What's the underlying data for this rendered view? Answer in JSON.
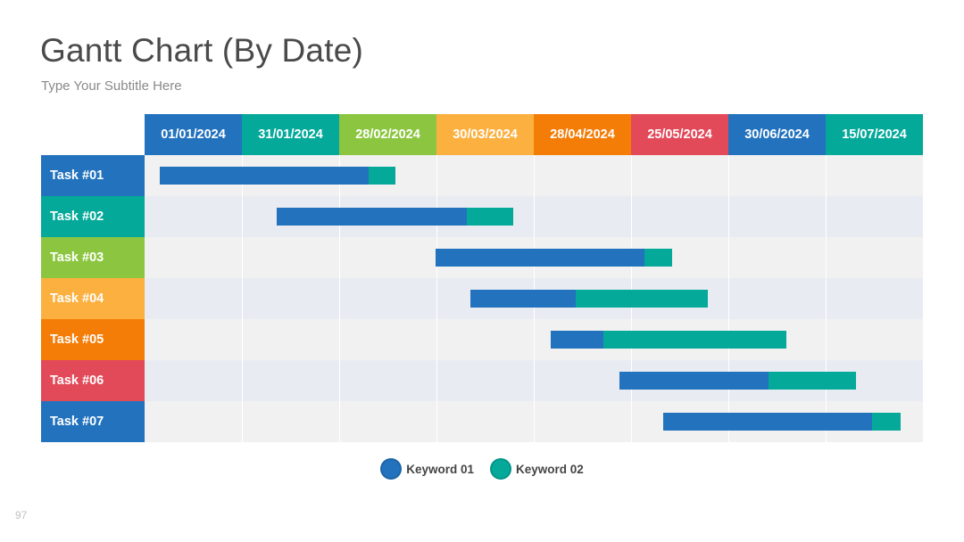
{
  "slide": {
    "title": "Gantt Chart (By Date)",
    "subtitle": "Type Your Subtitle Here",
    "page_number": "97"
  },
  "colors": {
    "blue": "#2272bd",
    "teal": "#05a99a",
    "green": "#8cc640",
    "yellow": "#fbb040",
    "orange": "#f47d08",
    "red": "#e24a5a"
  },
  "chart_data": {
    "type": "gantt",
    "title": "",
    "x_axis_dates": [
      "01/01/2024",
      "31/01/2024",
      "28/02/2024",
      "30/03/2024",
      "28/04/2024",
      "25/05/2024",
      "30/06/2024",
      "15/07/2024"
    ],
    "header_colors": [
      "#2272bd",
      "#05a99a",
      "#8cc640",
      "#fbb040",
      "#f47d08",
      "#e24a5a",
      "#2272bd",
      "#05a99a"
    ],
    "tasks": [
      {
        "name": "Task #01",
        "color": "#2272bd",
        "start": 0.16,
        "split": 2.3,
        "end": 2.58
      },
      {
        "name": "Task #02",
        "color": "#05a99a",
        "start": 1.36,
        "split": 3.31,
        "end": 3.79
      },
      {
        "name": "Task #03",
        "color": "#8cc640",
        "start": 2.99,
        "split": 5.14,
        "end": 5.42
      },
      {
        "name": "Task #04",
        "color": "#fbb040",
        "start": 3.35,
        "split": 4.43,
        "end": 5.79
      },
      {
        "name": "Task #05",
        "color": "#f47d08",
        "start": 4.17,
        "split": 4.72,
        "end": 6.6
      },
      {
        "name": "Task #06",
        "color": "#e24a5a",
        "start": 4.88,
        "split": 6.41,
        "end": 7.31
      },
      {
        "name": "Task #07",
        "color": "#2272bd",
        "start": 5.33,
        "split": 7.48,
        "end": 7.77
      }
    ],
    "series": [
      {
        "name": "Keyword 01",
        "color": "#2272bd"
      },
      {
        "name": "Keyword 02",
        "color": "#05a99a"
      }
    ],
    "legend_position": "bottom-center"
  }
}
